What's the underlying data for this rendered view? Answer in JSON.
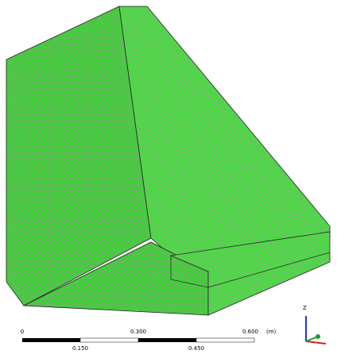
{
  "scale_bar": {
    "top_labels": [
      "0",
      "0.300",
      "0.600"
    ],
    "unit": "(m)",
    "bottom_labels": [
      "0.150",
      "0.450"
    ]
  },
  "axes": {
    "z_label": "Z"
  }
}
